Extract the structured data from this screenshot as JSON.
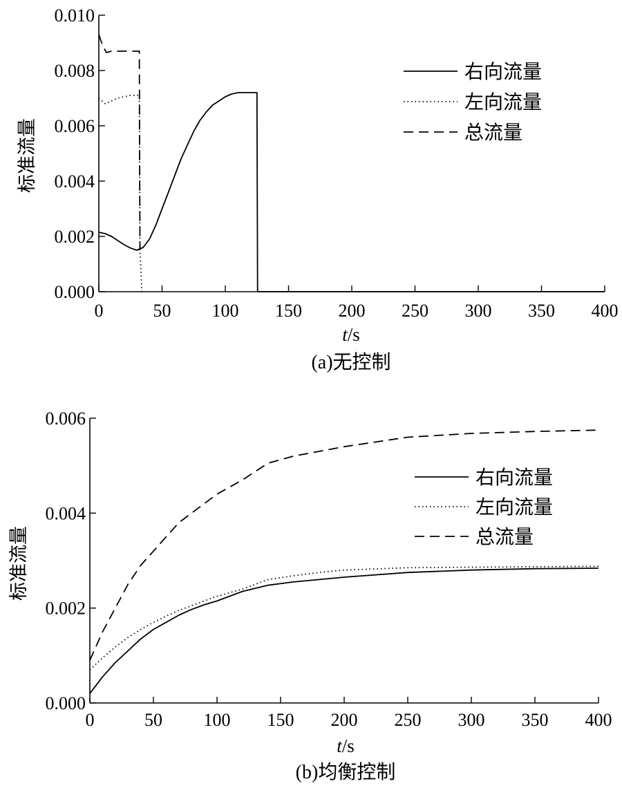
{
  "chart_data": [
    {
      "type": "line",
      "caption": "(a)无控制",
      "xlabel_italic": "t",
      "xlabel_rest": "/s",
      "ylabel": "标准流量",
      "xlim": [
        0,
        400
      ],
      "ylim": [
        0,
        0.01
      ],
      "xticks": [
        "0",
        "50",
        "100",
        "150",
        "200",
        "250",
        "300",
        "350",
        "400"
      ],
      "yticks": [
        "0.000",
        "0.002",
        "0.004",
        "0.006",
        "0.008",
        "0.010"
      ],
      "legend_position": "top-right",
      "series": [
        {
          "name": "右向流量",
          "style": "solid",
          "x": [
            0,
            5,
            10,
            15,
            20,
            25,
            30,
            35,
            40,
            45,
            50,
            55,
            60,
            65,
            70,
            75,
            80,
            85,
            90,
            95,
            100,
            105,
            110,
            115,
            120,
            125,
            125.5,
            400
          ],
          "y": [
            0.00215,
            0.0021,
            0.002,
            0.00185,
            0.0017,
            0.00158,
            0.0015,
            0.0016,
            0.0019,
            0.0024,
            0.003,
            0.0036,
            0.0042,
            0.0048,
            0.0053,
            0.0058,
            0.0062,
            0.0065,
            0.00675,
            0.0069,
            0.00705,
            0.00715,
            0.0072,
            0.0072,
            0.0072,
            0.0072,
            0,
            0
          ]
        },
        {
          "name": "左向流量",
          "style": "dotted",
          "x": [
            0,
            5,
            10,
            15,
            20,
            25,
            30,
            32,
            32.5,
            34
          ],
          "y": [
            0.007,
            0.0068,
            0.0069,
            0.007,
            0.00705,
            0.0071,
            0.0071,
            0.0071,
            0.0016,
            0
          ]
        },
        {
          "name": "总流量",
          "style": "dashed",
          "x": [
            0,
            3,
            6,
            10,
            15,
            20,
            25,
            30,
            32,
            32.5
          ],
          "y": [
            0.0093,
            0.0089,
            0.00865,
            0.0087,
            0.0087,
            0.0087,
            0.0087,
            0.0087,
            0.0087,
            0.0015
          ]
        }
      ]
    },
    {
      "type": "line",
      "caption": "(b)均衡控制",
      "xlabel_italic": "t",
      "xlabel_rest": "/s",
      "ylabel": "标准流量",
      "xlim": [
        0,
        400
      ],
      "ylim": [
        0,
        0.006
      ],
      "xticks": [
        "0",
        "50",
        "100",
        "150",
        "200",
        "250",
        "300",
        "350",
        "400"
      ],
      "yticks": [
        "0.000",
        "0.002",
        "0.004",
        "0.006"
      ],
      "legend_position": "top-right",
      "series": [
        {
          "name": "右向流量",
          "style": "solid",
          "x": [
            0,
            10,
            20,
            30,
            40,
            50,
            60,
            70,
            80,
            90,
            100,
            120,
            140,
            160,
            180,
            200,
            250,
            300,
            350,
            400
          ],
          "y": [
            0.0002,
            0.00055,
            0.00085,
            0.0011,
            0.00135,
            0.00155,
            0.0017,
            0.00185,
            0.00197,
            0.00207,
            0.00215,
            0.00235,
            0.00248,
            0.00255,
            0.0026,
            0.00265,
            0.00275,
            0.0028,
            0.00283,
            0.00284
          ]
        },
        {
          "name": "左向流量",
          "style": "dotted",
          "x": [
            0,
            10,
            20,
            30,
            40,
            50,
            60,
            70,
            80,
            90,
            100,
            120,
            140,
            160,
            180,
            200,
            250,
            300,
            350,
            400
          ],
          "y": [
            0.0007,
            0.00095,
            0.00118,
            0.00138,
            0.00155,
            0.0017,
            0.00183,
            0.00195,
            0.00205,
            0.00215,
            0.00225,
            0.0024,
            0.0026,
            0.00268,
            0.00275,
            0.0028,
            0.00285,
            0.00286,
            0.00287,
            0.00288
          ]
        },
        {
          "name": "总流量",
          "style": "dashed",
          "x": [
            0,
            10,
            20,
            30,
            40,
            50,
            60,
            70,
            80,
            90,
            100,
            120,
            140,
            160,
            180,
            200,
            250,
            300,
            350,
            400
          ],
          "y": [
            0.0009,
            0.0015,
            0.002,
            0.0025,
            0.0029,
            0.0032,
            0.0035,
            0.0038,
            0.004,
            0.0042,
            0.0044,
            0.0047,
            0.00505,
            0.0052,
            0.0053,
            0.0054,
            0.0056,
            0.00568,
            0.00572,
            0.00575
          ]
        }
      ]
    }
  ]
}
